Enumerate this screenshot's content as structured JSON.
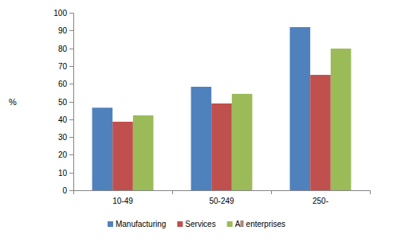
{
  "chart_data": {
    "type": "bar",
    "ylabel": "%",
    "categories": [
      "10-49",
      "50-249",
      "250-"
    ],
    "series": [
      {
        "name": "Manufacturing",
        "color": "#4f81bd",
        "values": [
          46.5,
          58.3,
          91.9
        ]
      },
      {
        "name": "Services",
        "color": "#c0504d",
        "values": [
          38.6,
          48.9,
          65.0
        ]
      },
      {
        "name": "All enterprises",
        "color": "#9bbb59",
        "values": [
          42.2,
          54.3,
          79.8
        ]
      }
    ],
    "ylim": [
      0,
      100
    ],
    "yticks": [
      0,
      10,
      20,
      30,
      40,
      50,
      60,
      70,
      80,
      90,
      100
    ],
    "grid": false,
    "legend": "bottom"
  }
}
